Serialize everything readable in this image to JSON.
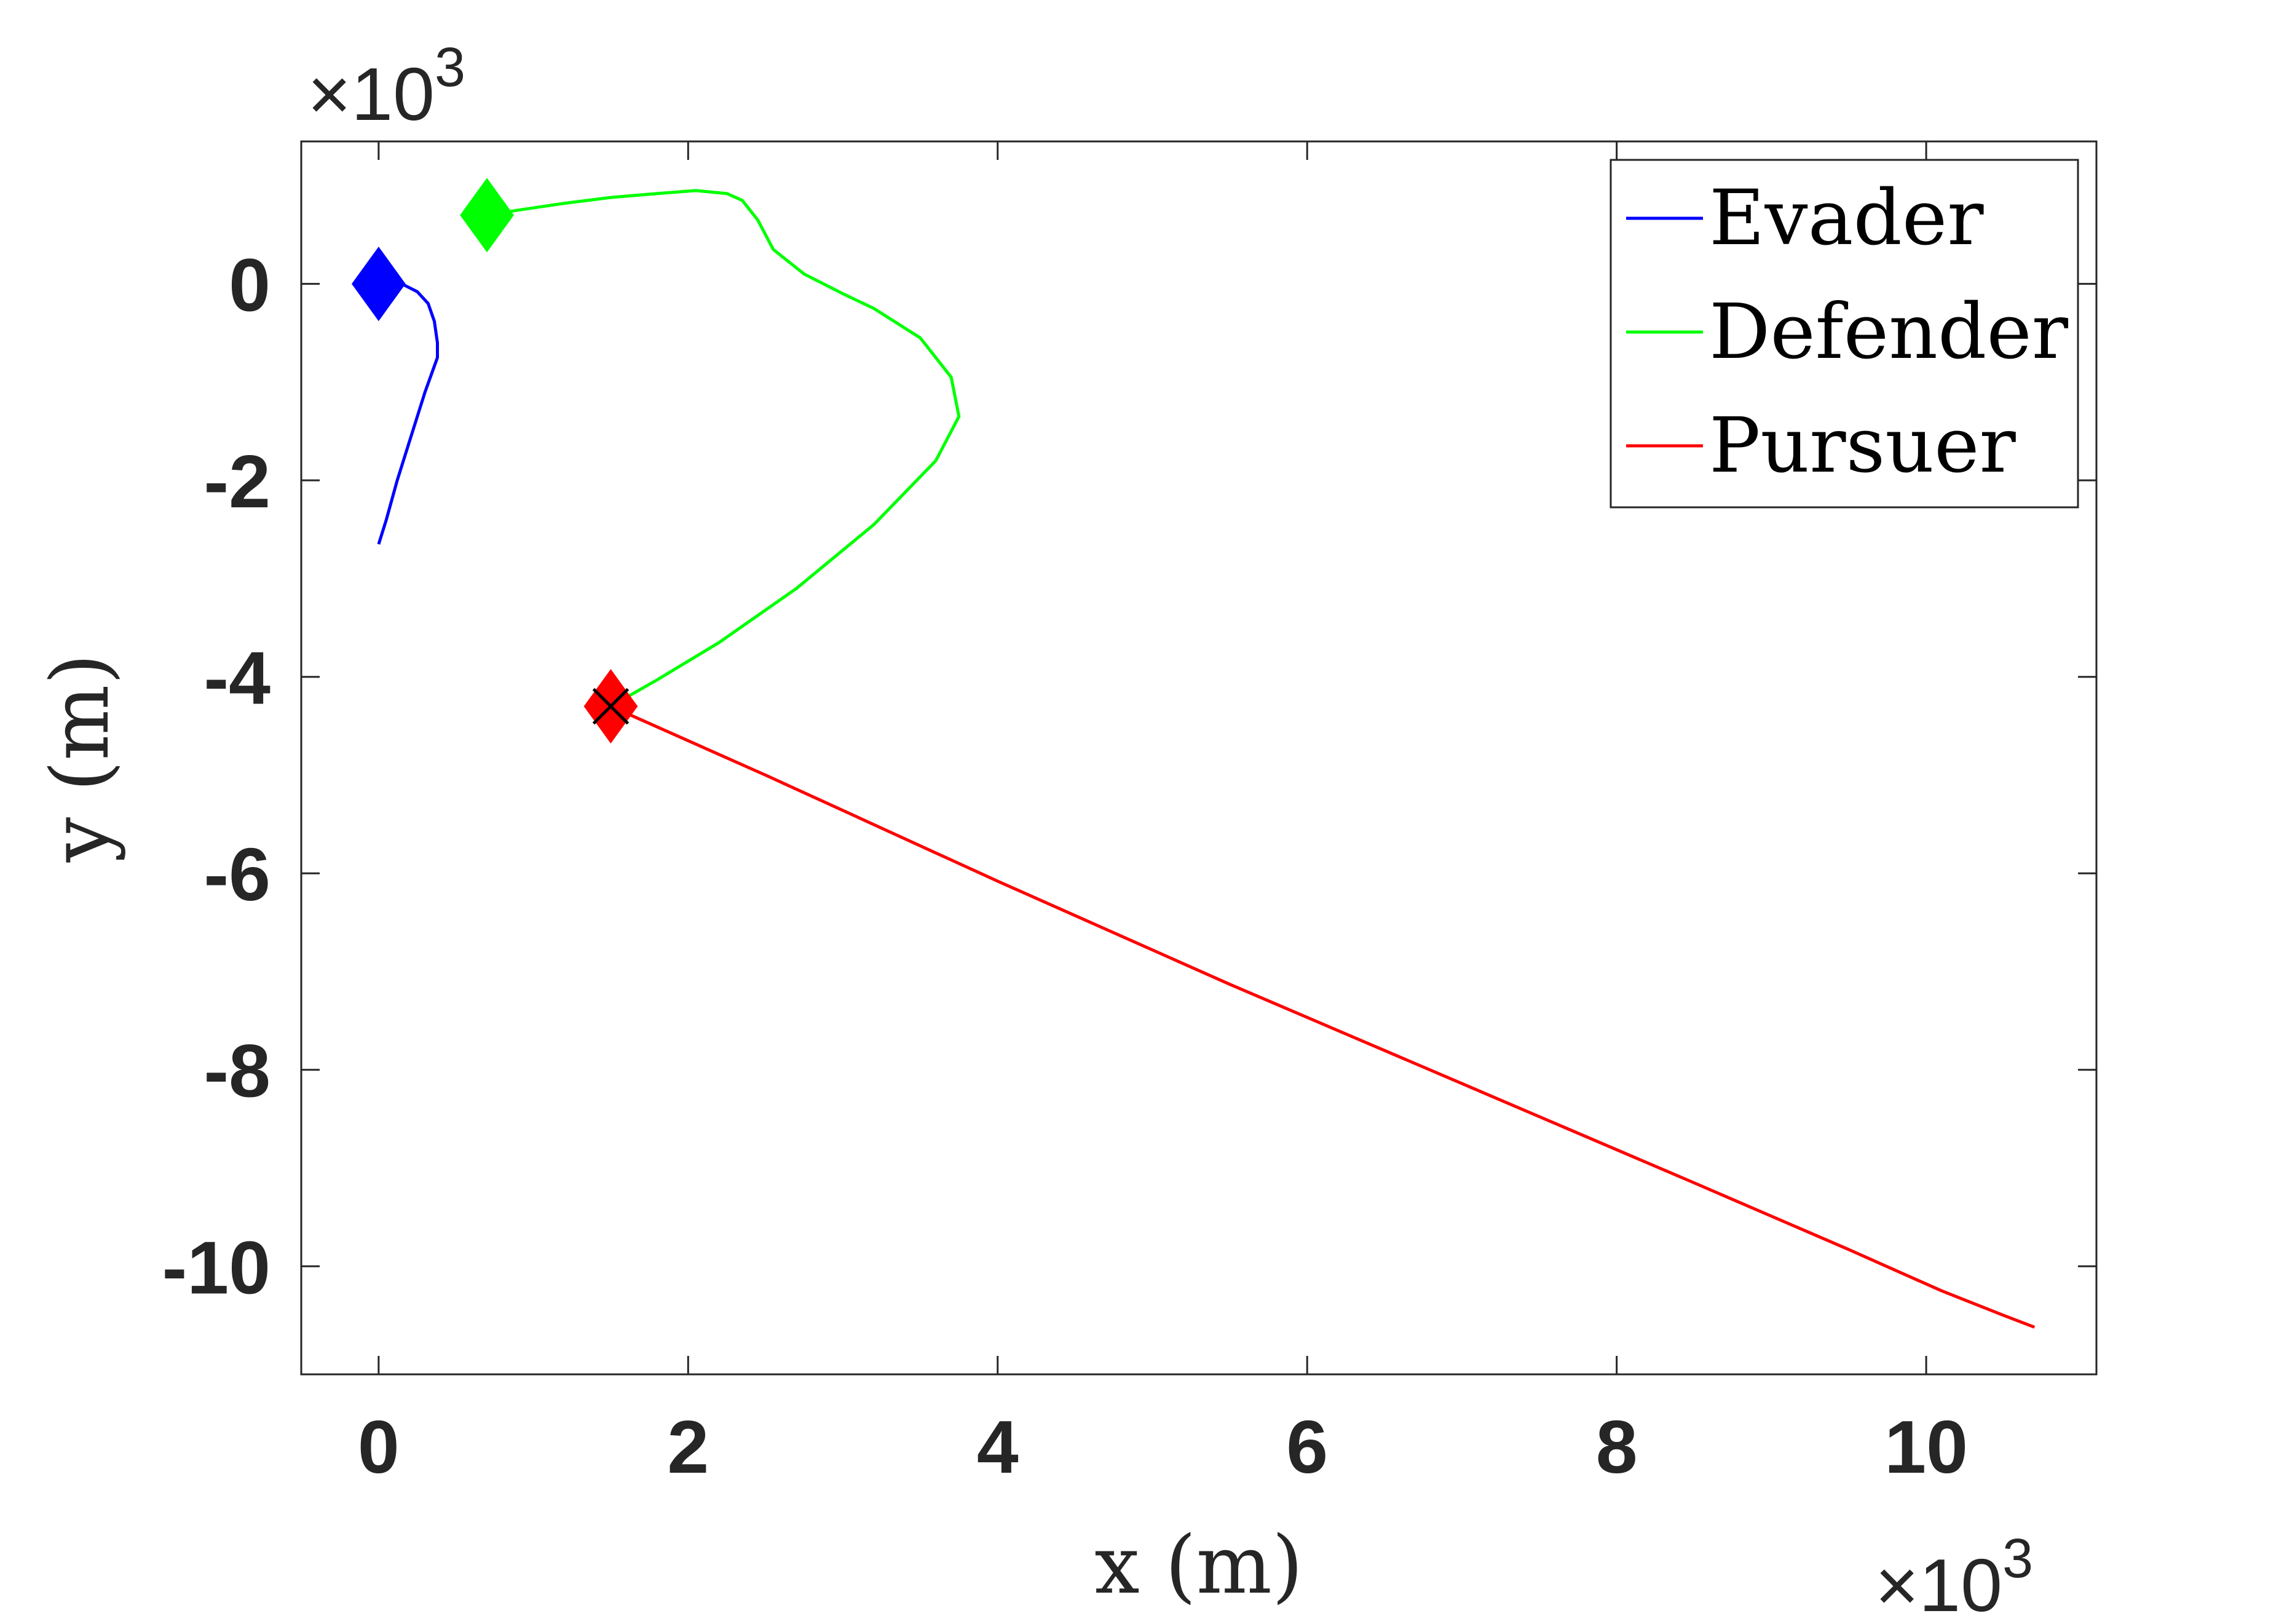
{
  "chart_data": {
    "type": "line",
    "xlabel": "x (m)",
    "ylabel": "y (m)",
    "x_multiplier_label": "×10",
    "x_multiplier_exp": "3",
    "y_multiplier_label": "×10",
    "y_multiplier_exp": "3",
    "xlim": [
      -500,
      11100
    ],
    "ylim": [
      -11100,
      1450
    ],
    "x_ticks": [
      0,
      2000,
      4000,
      6000,
      8000,
      10000
    ],
    "x_tick_labels": [
      "0",
      "2",
      "4",
      "6",
      "8",
      "10"
    ],
    "y_ticks": [
      0,
      -2000,
      -4000,
      -6000,
      -8000,
      -10000
    ],
    "y_tick_labels": [
      "0",
      "-2",
      "-4",
      "-6",
      "-8",
      "-10"
    ],
    "grid": false,
    "legend_position": "top-right",
    "series": [
      {
        "name": "Evader",
        "color": "#0000ff",
        "start_marker": "diamond",
        "points": [
          [
            0,
            0
          ],
          [
            150,
            0
          ],
          [
            250,
            -80
          ],
          [
            320,
            -200
          ],
          [
            360,
            -380
          ],
          [
            380,
            -600
          ],
          [
            380,
            -750
          ],
          [
            300,
            -1100
          ],
          [
            200,
            -1600
          ],
          [
            120,
            -2000
          ],
          [
            50,
            -2400
          ],
          [
            0,
            -2650
          ]
        ]
      },
      {
        "name": "Defender",
        "color": "#00ff00",
        "start_marker": "diamond",
        "points": [
          [
            700,
            700
          ],
          [
            900,
            750
          ],
          [
            1200,
            820
          ],
          [
            1500,
            880
          ],
          [
            1800,
            920
          ],
          [
            2050,
            950
          ],
          [
            2250,
            920
          ],
          [
            2350,
            850
          ],
          [
            2450,
            650
          ],
          [
            2550,
            350
          ],
          [
            2750,
            100
          ],
          [
            3000,
            -100
          ],
          [
            3200,
            -250
          ],
          [
            3500,
            -550
          ],
          [
            3700,
            -950
          ],
          [
            3750,
            -1350
          ],
          [
            3600,
            -1800
          ],
          [
            3200,
            -2450
          ],
          [
            2700,
            -3100
          ],
          [
            2200,
            -3650
          ],
          [
            1800,
            -4030
          ],
          [
            1500,
            -4300
          ]
        ]
      },
      {
        "name": "Pursuer",
        "color": "#ff0000",
        "start_marker": "diamond",
        "points": [
          [
            1500,
            -4300
          ],
          [
            2500,
            -5000
          ],
          [
            4000,
            -6080
          ],
          [
            5500,
            -7130
          ],
          [
            7000,
            -8140
          ],
          [
            8500,
            -9150
          ],
          [
            9500,
            -9830
          ],
          [
            10100,
            -10250
          ],
          [
            10500,
            -10500
          ],
          [
            10700,
            -10620
          ]
        ]
      }
    ],
    "capture_marker": {
      "type": "x",
      "color": "#000000",
      "point": [
        1500,
        -4300
      ]
    }
  }
}
